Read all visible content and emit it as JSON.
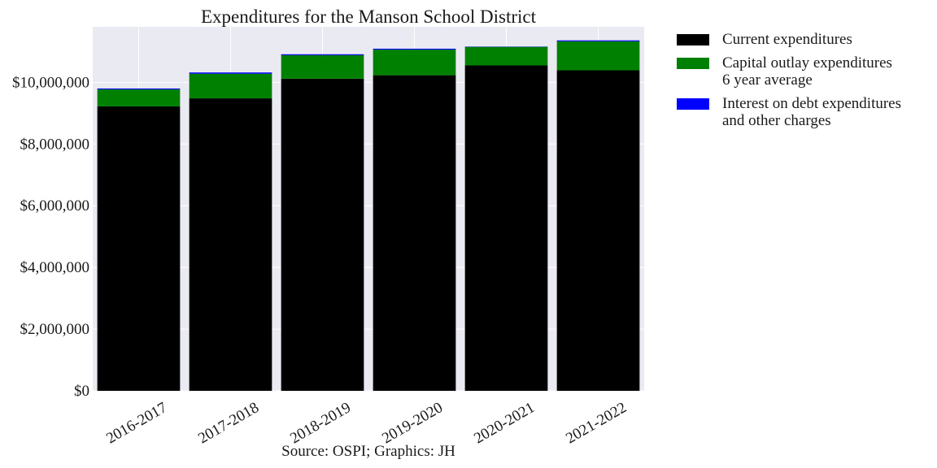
{
  "chart_data": {
    "type": "bar",
    "stacked": true,
    "title": "Expenditures for the Manson School District",
    "xlabel": "Source: OSPI; Graphics: JH",
    "ylabel": "",
    "categories": [
      "2016-2017",
      "2017-2018",
      "2018-2019",
      "2019-2020",
      "2020-2021",
      "2021-2022"
    ],
    "series": [
      {
        "name": "Current expenditures",
        "color": "#000000",
        "values": [
          9220000,
          9480000,
          10120000,
          10230000,
          10550000,
          10390000
        ]
      },
      {
        "name": "Capital outlay expenditures\n6 year average",
        "color": "#008000",
        "values": [
          550000,
          800000,
          760000,
          830000,
          600000,
          940000
        ]
      },
      {
        "name": "Interest on debt expenditures\nand other charges",
        "color": "#0000ff",
        "values": [
          30000,
          40000,
          30000,
          30000,
          10000,
          30000
        ]
      }
    ],
    "ylim": [
      0,
      11800000
    ],
    "yticks": [
      0,
      2000000,
      4000000,
      6000000,
      8000000,
      10000000
    ],
    "ytick_labels": [
      "$0",
      "$2,000,000",
      "$4,000,000",
      "$6,000,000",
      "$8,000,000",
      "$10,000,000"
    ],
    "grid": true,
    "legend_position": "outside-right"
  }
}
